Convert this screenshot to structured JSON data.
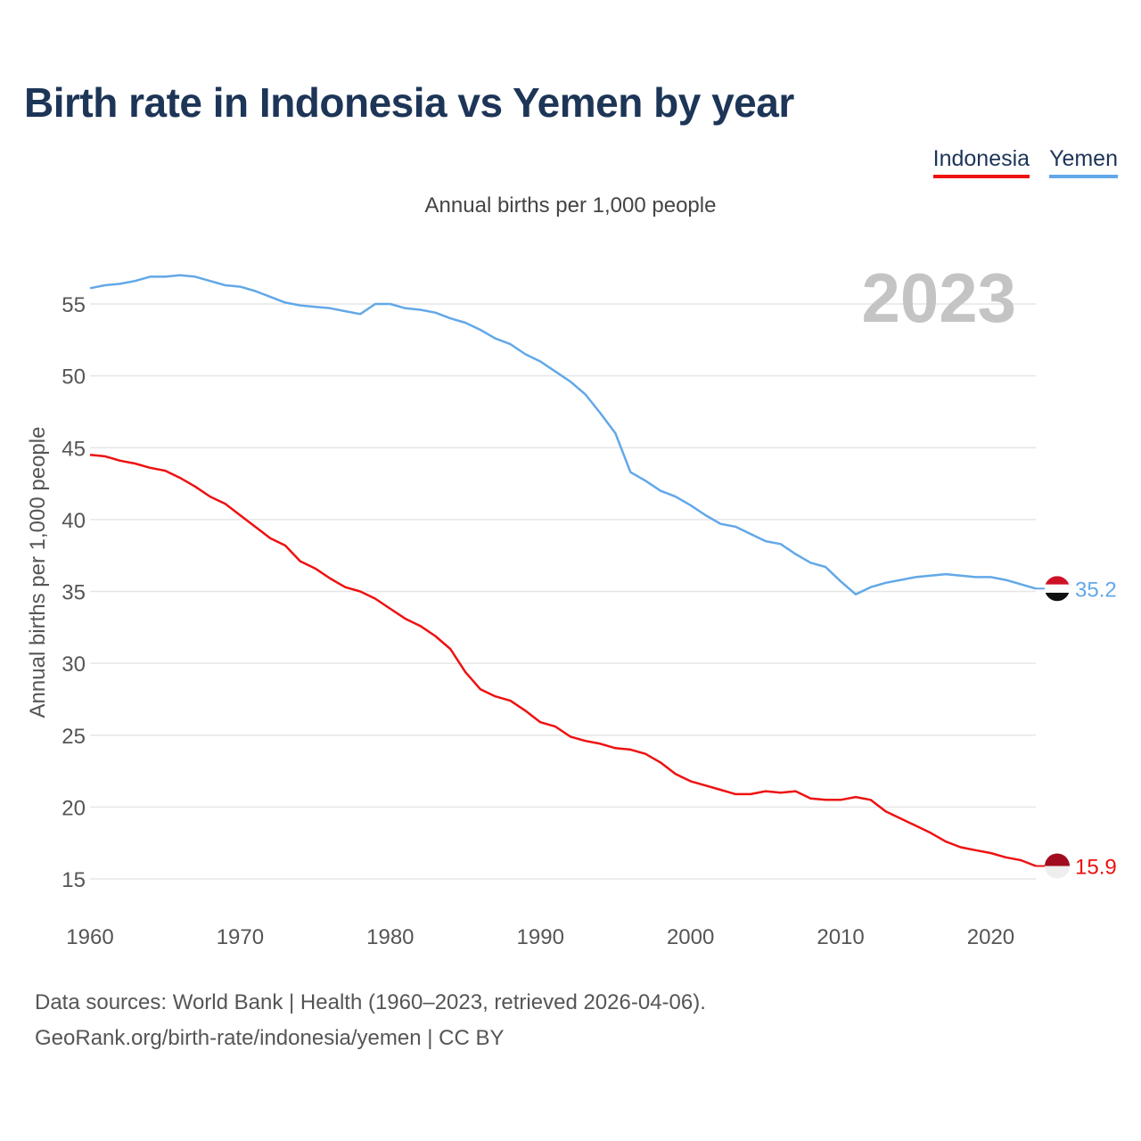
{
  "title": "Birth rate in Indonesia vs Yemen by year",
  "legend": {
    "indonesia": "Indonesia",
    "yemen": "Yemen"
  },
  "subtitle": "Annual births per 1,000 people",
  "footer": {
    "line1": "Data sources: World Bank | Health (1960–2023, retrieved 2026-04-06).",
    "line2": "GeoRank.org/birth-rate/indonesia/yemen | CC BY"
  },
  "colors": {
    "indonesia": "#ee1111",
    "yemen": "#62a8e8",
    "year_label": "#c4c4c4",
    "grid": "#e6e6e6",
    "axis_text": "#555555"
  },
  "chart_data": {
    "type": "line",
    "title": "Birth rate in Indonesia vs Yemen by year",
    "xlabel": "",
    "ylabel": "Annual births per 1,000 people",
    "xlim": [
      1960,
      2023
    ],
    "ylim": [
      15,
      57
    ],
    "xticks": [
      1960,
      1970,
      1980,
      1990,
      2000,
      2010,
      2020
    ],
    "yticks": [
      15,
      20,
      25,
      30,
      35,
      40,
      45,
      50,
      55
    ],
    "year_label": "2023",
    "x": [
      1960,
      1961,
      1962,
      1963,
      1964,
      1965,
      1966,
      1967,
      1968,
      1969,
      1970,
      1971,
      1972,
      1973,
      1974,
      1975,
      1976,
      1977,
      1978,
      1979,
      1980,
      1981,
      1982,
      1983,
      1984,
      1985,
      1986,
      1987,
      1988,
      1989,
      1990,
      1991,
      1992,
      1993,
      1994,
      1995,
      1996,
      1997,
      1998,
      1999,
      2000,
      2001,
      2002,
      2003,
      2004,
      2005,
      2006,
      2007,
      2008,
      2009,
      2010,
      2011,
      2012,
      2013,
      2014,
      2015,
      2016,
      2017,
      2018,
      2019,
      2020,
      2021,
      2022,
      2023
    ],
    "series": [
      {
        "name": "Indonesia",
        "end_label": "15.9",
        "values": [
          44.5,
          44.4,
          44.1,
          43.9,
          43.6,
          43.4,
          42.9,
          42.3,
          41.6,
          41.1,
          40.3,
          39.5,
          38.7,
          38.2,
          37.1,
          36.6,
          35.9,
          35.3,
          35.0,
          34.5,
          33.8,
          33.1,
          32.6,
          31.9,
          31.0,
          29.4,
          28.2,
          27.7,
          27.4,
          26.7,
          25.9,
          25.6,
          24.9,
          24.6,
          24.4,
          24.1,
          24.0,
          23.7,
          23.1,
          22.3,
          21.8,
          21.5,
          21.2,
          20.9,
          20.9,
          21.1,
          21.0,
          21.1,
          20.6,
          20.5,
          20.5,
          20.7,
          20.5,
          19.7,
          19.2,
          18.7,
          18.2,
          17.6,
          17.2,
          17.0,
          16.8,
          16.5,
          16.3,
          15.9
        ]
      },
      {
        "name": "Yemen",
        "end_label": "35.2",
        "values": [
          56.1,
          56.3,
          56.4,
          56.6,
          56.9,
          56.9,
          57.0,
          56.9,
          56.6,
          56.3,
          56.2,
          55.9,
          55.5,
          55.1,
          54.9,
          54.8,
          54.7,
          54.5,
          54.3,
          55.0,
          55.0,
          54.7,
          54.6,
          54.4,
          54.0,
          53.7,
          53.2,
          52.6,
          52.2,
          51.5,
          51.0,
          50.3,
          49.6,
          48.7,
          47.4,
          46.0,
          43.3,
          42.7,
          42.0,
          41.6,
          41.0,
          40.3,
          39.7,
          39.5,
          39.0,
          38.5,
          38.3,
          37.6,
          37.0,
          36.7,
          35.7,
          34.8,
          35.3,
          35.6,
          35.8,
          36.0,
          36.1,
          36.2,
          36.1,
          36.0,
          36.0,
          35.8,
          35.5,
          35.2
        ]
      }
    ]
  }
}
